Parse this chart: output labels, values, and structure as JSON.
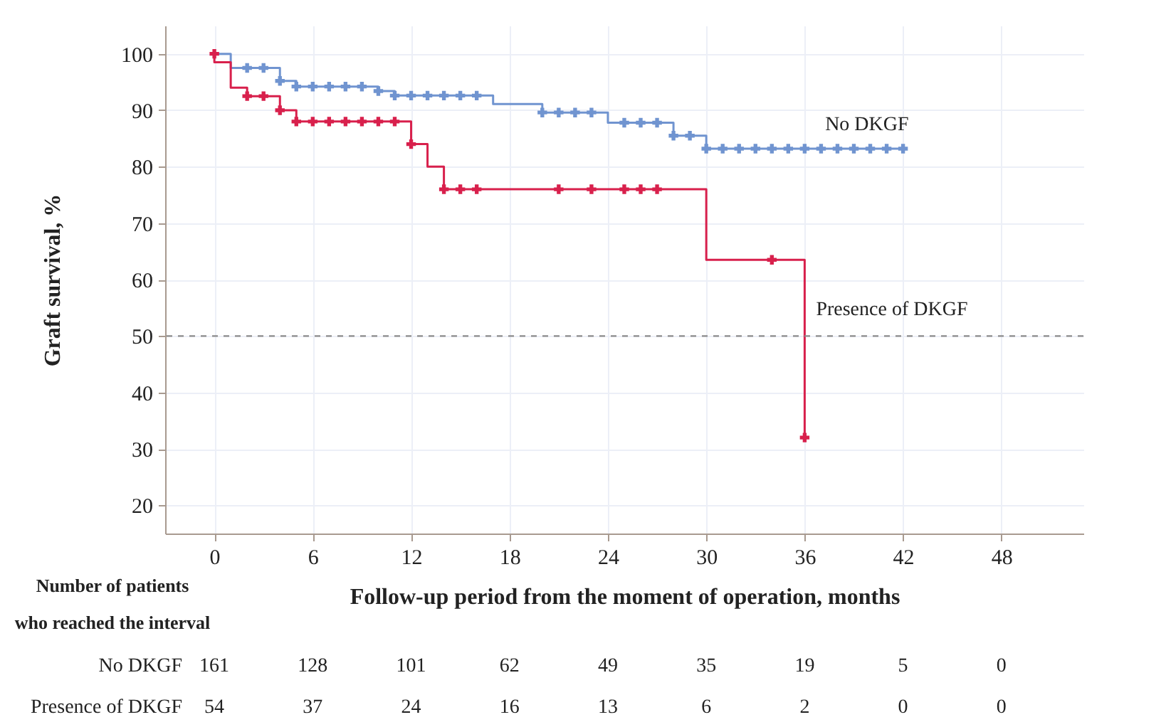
{
  "chart_data": {
    "type": "step",
    "xlabel": "Follow-up period from the moment of operation, months",
    "ylabel": "Graft survival, %",
    "xlim": [
      -3,
      53
    ],
    "ylim": [
      15,
      105
    ],
    "xticks": [
      0,
      6,
      12,
      18,
      24,
      30,
      36,
      42,
      48
    ],
    "yticks": [
      20,
      30,
      40,
      50,
      60,
      70,
      80,
      90,
      100
    ],
    "grid": true,
    "series": [
      {
        "name": "No DKGF",
        "color": "#7094d0",
        "x": [
          0,
          1,
          4,
          5,
          10,
          11,
          17,
          20,
          24,
          28,
          30,
          42
        ],
        "values": [
          100,
          97.5,
          95.2,
          94.2,
          93.4,
          92.6,
          91.1,
          89.6,
          87.8,
          85.5,
          83.2,
          83.2
        ]
      },
      {
        "name": "Presence of DKGF",
        "color": "#d8204c",
        "x": [
          0,
          0,
          1,
          2,
          4,
          5,
          12,
          13,
          14,
          30,
          36
        ],
        "values": [
          100,
          98.5,
          94,
          92.5,
          90,
          88,
          84,
          80,
          76,
          63.5,
          32
        ]
      },
      {
        "type": "scatter",
        "marker": "cross",
        "color": "#7094d0",
        "x": [
          2,
          3,
          4,
          5,
          6,
          7,
          8,
          9,
          10,
          11,
          12,
          13,
          14,
          15,
          16,
          20,
          21,
          22,
          23,
          25,
          26,
          27,
          28,
          29,
          30,
          31,
          32,
          33,
          34,
          35,
          36,
          37,
          38,
          39,
          40,
          41,
          42
        ],
        "values": [
          97.5,
          97.5,
          95.2,
          94.2,
          94.2,
          94.2,
          94.2,
          94.2,
          93.4,
          92.6,
          92.6,
          92.6,
          92.6,
          92.6,
          92.6,
          89.6,
          89.6,
          89.6,
          89.6,
          87.8,
          87.8,
          87.8,
          85.5,
          85.5,
          83.2,
          83.2,
          83.2,
          83.2,
          83.2,
          83.2,
          83.2,
          83.2,
          83.2,
          83.2,
          83.2,
          83.2,
          83.2
        ]
      },
      {
        "type": "scatter",
        "marker": "cross",
        "color": "#d8204c",
        "x": [
          0,
          2,
          3,
          4,
          5,
          6,
          7,
          8,
          9,
          10,
          11,
          12,
          14,
          15,
          16,
          21,
          23,
          25,
          26,
          27,
          34,
          36
        ],
        "values": [
          100,
          92.5,
          92.5,
          90,
          88,
          88,
          88,
          88,
          88,
          88,
          88,
          84,
          76,
          76,
          76,
          76,
          76,
          76,
          76,
          76,
          63.5,
          32
        ]
      }
    ],
    "ref_lines": [
      {
        "axis": "y",
        "value": 50,
        "line_style": "dashed",
        "color": "#8c8c8c"
      }
    ],
    "annotations": [
      "Number of patients",
      "who reached the interval",
      "No DKGF",
      "161",
      "128",
      "101",
      "62",
      "49",
      "35",
      "19",
      "5",
      "0",
      "Presence of DKGF",
      "54",
      "37",
      "24",
      "16",
      "13",
      "6",
      "2",
      "0",
      "0"
    ]
  }
}
